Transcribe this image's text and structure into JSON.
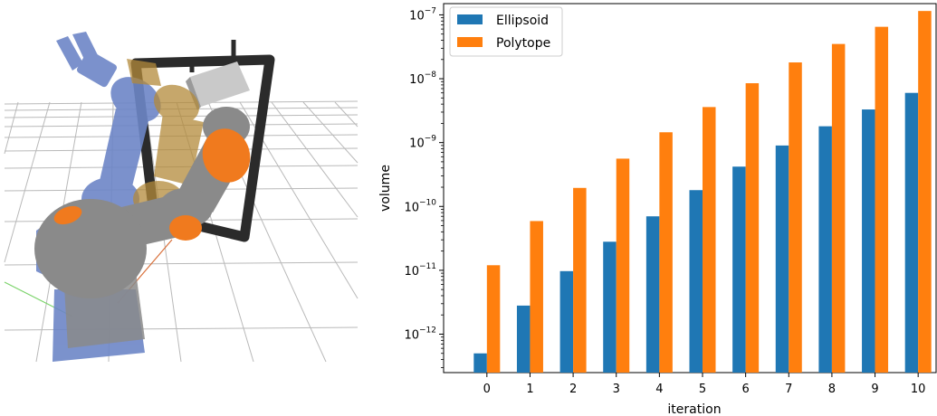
{
  "figure": {
    "render_alt": "robot-arm-render"
  },
  "chart_data": {
    "type": "bar",
    "xlabel": "iteration",
    "ylabel": "volume",
    "yscale": "log",
    "ylim": [
      2.5e-13,
      1.5e-07
    ],
    "y_ticks": [
      {
        "base": "10",
        "exp": "−12",
        "value": 1e-12
      },
      {
        "base": "10",
        "exp": "−11",
        "value": 1e-11
      },
      {
        "base": "10",
        "exp": "−10",
        "value": 1e-10
      },
      {
        "base": "10",
        "exp": "−9",
        "value": 1e-09
      },
      {
        "base": "10",
        "exp": "−8",
        "value": 1e-08
      },
      {
        "base": "10",
        "exp": "−7",
        "value": 1e-07
      }
    ],
    "categories": [
      "0",
      "1",
      "2",
      "3",
      "4",
      "5",
      "6",
      "7",
      "8",
      "9",
      "10"
    ],
    "legend_position": "top-left",
    "grid": false,
    "series": [
      {
        "name": "Ellipsoid",
        "color": "#1f77b4",
        "values": [
          5e-13,
          2.8e-12,
          9.7e-12,
          2.8e-11,
          7e-11,
          1.8e-10,
          4.2e-10,
          9e-10,
          1.8e-09,
          3.3e-09,
          6e-09
        ]
      },
      {
        "name": "Polytope",
        "color": "#ff7f0e",
        "values": [
          1.2e-11,
          5.9e-11,
          1.95e-10,
          5.6e-10,
          1.45e-09,
          3.6e-09,
          8.5e-09,
          1.8e-08,
          3.5e-08,
          6.5e-08,
          1.15e-07
        ]
      }
    ]
  }
}
